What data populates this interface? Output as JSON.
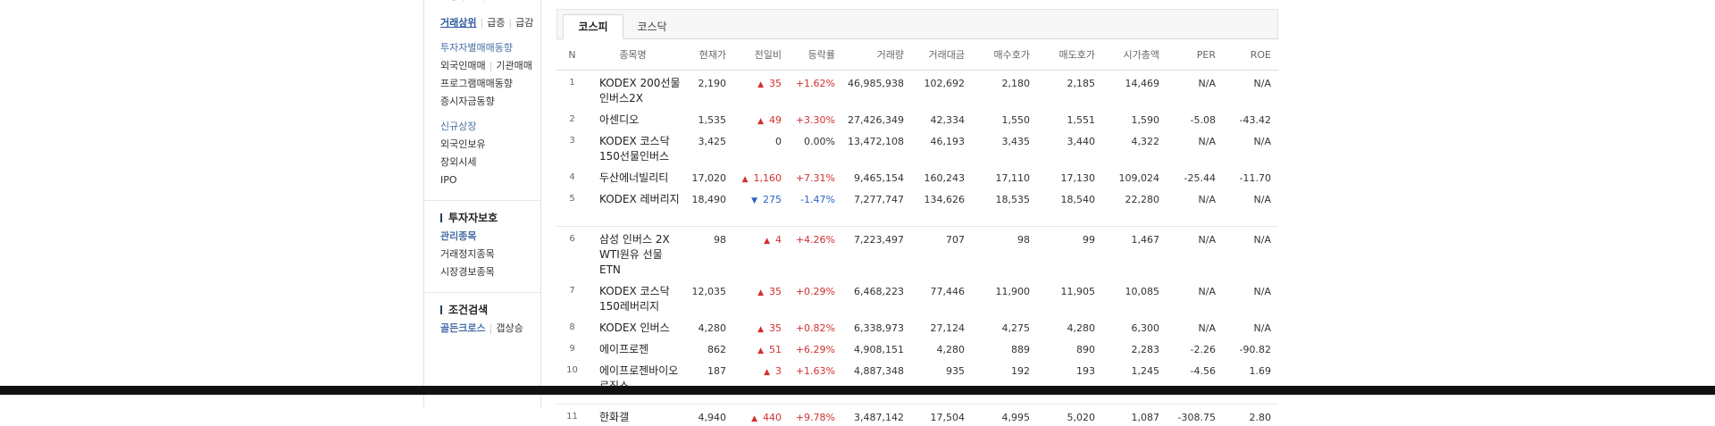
{
  "sidebar": {
    "rows": [
      {
        "items": [
          {
            "label": "급등",
            "style": "normal"
          },
          {
            "label": "급락",
            "style": "normal"
          }
        ]
      },
      {
        "items": [
          {
            "label": "거래상위",
            "style": "selected"
          },
          {
            "label": "급증",
            "style": "normal"
          },
          {
            "label": "급감",
            "style": "normal"
          }
        ]
      },
      {
        "items": [
          {
            "label": "투자자별매매동향",
            "style": "blue"
          }
        ]
      },
      {
        "items": [
          {
            "label": "외국인매매",
            "style": "normal"
          },
          {
            "label": "기관매매",
            "style": "normal"
          }
        ]
      },
      {
        "items": [
          {
            "label": "프로그램매매동향",
            "style": "normal"
          }
        ]
      },
      {
        "items": [
          {
            "label": "증시자금동향",
            "style": "normal"
          }
        ]
      },
      {
        "items": [
          {
            "label": "신규상장",
            "style": "blue"
          }
        ]
      },
      {
        "items": [
          {
            "label": "외국인보유",
            "style": "normal"
          }
        ]
      },
      {
        "items": [
          {
            "label": "장외시세",
            "style": "normal"
          }
        ]
      },
      {
        "items": [
          {
            "label": "IPO",
            "style": "normal"
          }
        ]
      }
    ],
    "investor_protection": {
      "title": "투자자보호",
      "items": [
        "관리종목",
        "거래정지종목",
        "시장경보종목"
      ]
    },
    "condition_search": {
      "title": "조건검색",
      "items": [
        "골든크로스",
        "갭상승"
      ]
    }
  },
  "tabs": [
    {
      "label": "코스피",
      "active": true
    },
    {
      "label": "코스닥",
      "active": false
    }
  ],
  "table": {
    "headers": [
      "N",
      "종목명",
      "현재가",
      "전일비",
      "등락률",
      "거래량",
      "거래대금",
      "매수호가",
      "매도호가",
      "시가총액",
      "PER",
      "ROE"
    ],
    "rows": [
      {
        "n": "1",
        "name": "KODEX 200선물인버스2X",
        "price": "2,190",
        "dir": "up",
        "change": "35",
        "rate": "+1.62%",
        "volume": "46,985,938",
        "amount": "102,692",
        "bid": "2,180",
        "ask": "2,185",
        "cap": "14,469",
        "per": "N/A",
        "roe": "N/A"
      },
      {
        "n": "2",
        "name": "아센디오",
        "price": "1,535",
        "dir": "up",
        "change": "49",
        "rate": "+3.30%",
        "volume": "27,426,349",
        "amount": "42,334",
        "bid": "1,550",
        "ask": "1,551",
        "cap": "1,590",
        "per": "-5.08",
        "roe": "-43.42"
      },
      {
        "n": "3",
        "name": "KODEX 코스닥150선물인버스",
        "price": "3,425",
        "dir": "none",
        "change": "0",
        "rate": "0.00%",
        "volume": "13,472,108",
        "amount": "46,193",
        "bid": "3,435",
        "ask": "3,440",
        "cap": "4,322",
        "per": "N/A",
        "roe": "N/A"
      },
      {
        "n": "4",
        "name": "두산에너빌리티",
        "price": "17,020",
        "dir": "up",
        "change": "1,160",
        "rate": "+7.31%",
        "volume": "9,465,154",
        "amount": "160,243",
        "bid": "17,110",
        "ask": "17,130",
        "cap": "109,024",
        "per": "-25.44",
        "roe": "-11.70"
      },
      {
        "n": "5",
        "name": "KODEX 레버리지",
        "price": "18,490",
        "dir": "down",
        "change": "275",
        "rate": "-1.47%",
        "volume": "7,277,747",
        "amount": "134,626",
        "bid": "18,535",
        "ask": "18,540",
        "cap": "22,280",
        "per": "N/A",
        "roe": "N/A"
      },
      {
        "n": "6",
        "name": "삼성 인버스 2X WTI원유 선물 ETN",
        "price": "98",
        "dir": "up",
        "change": "4",
        "rate": "+4.26%",
        "volume": "7,223,497",
        "amount": "707",
        "bid": "98",
        "ask": "99",
        "cap": "1,467",
        "per": "N/A",
        "roe": "N/A"
      },
      {
        "n": "7",
        "name": "KODEX 코스닥150레버리지",
        "price": "12,035",
        "dir": "up",
        "change": "35",
        "rate": "+0.29%",
        "volume": "6,468,223",
        "amount": "77,446",
        "bid": "11,900",
        "ask": "11,905",
        "cap": "10,085",
        "per": "N/A",
        "roe": "N/A"
      },
      {
        "n": "8",
        "name": "KODEX 인버스",
        "price": "4,280",
        "dir": "up",
        "change": "35",
        "rate": "+0.82%",
        "volume": "6,338,973",
        "amount": "27,124",
        "bid": "4,275",
        "ask": "4,280",
        "cap": "6,300",
        "per": "N/A",
        "roe": "N/A"
      },
      {
        "n": "9",
        "name": "에이프로젠",
        "price": "862",
        "dir": "up",
        "change": "51",
        "rate": "+6.29%",
        "volume": "4,908,151",
        "amount": "4,280",
        "bid": "889",
        "ask": "890",
        "cap": "2,283",
        "per": "-2.26",
        "roe": "-90.82"
      },
      {
        "n": "10",
        "name": "에이프로젠바이오로직스",
        "price": "187",
        "dir": "up",
        "change": "3",
        "rate": "+1.63%",
        "volume": "4,887,348",
        "amount": "935",
        "bid": "192",
        "ask": "193",
        "cap": "1,245",
        "per": "-4.56",
        "roe": "1.69"
      },
      {
        "n": "11",
        "name": "한화갤",
        "price": "4,940",
        "dir": "up",
        "change": "440",
        "rate": "+9.78%",
        "volume": "3,487,142",
        "amount": "17,504",
        "bid": "4,995",
        "ask": "5,020",
        "cap": "1,087",
        "per": "-308.75",
        "roe": "2.80"
      }
    ]
  },
  "colors": {
    "up": "#d32f2f",
    "down": "#2962c8",
    "link_blue": "#4a6fa5",
    "selected": "#2d57a0"
  },
  "icons": {
    "up": "▲",
    "down": "▼"
  }
}
